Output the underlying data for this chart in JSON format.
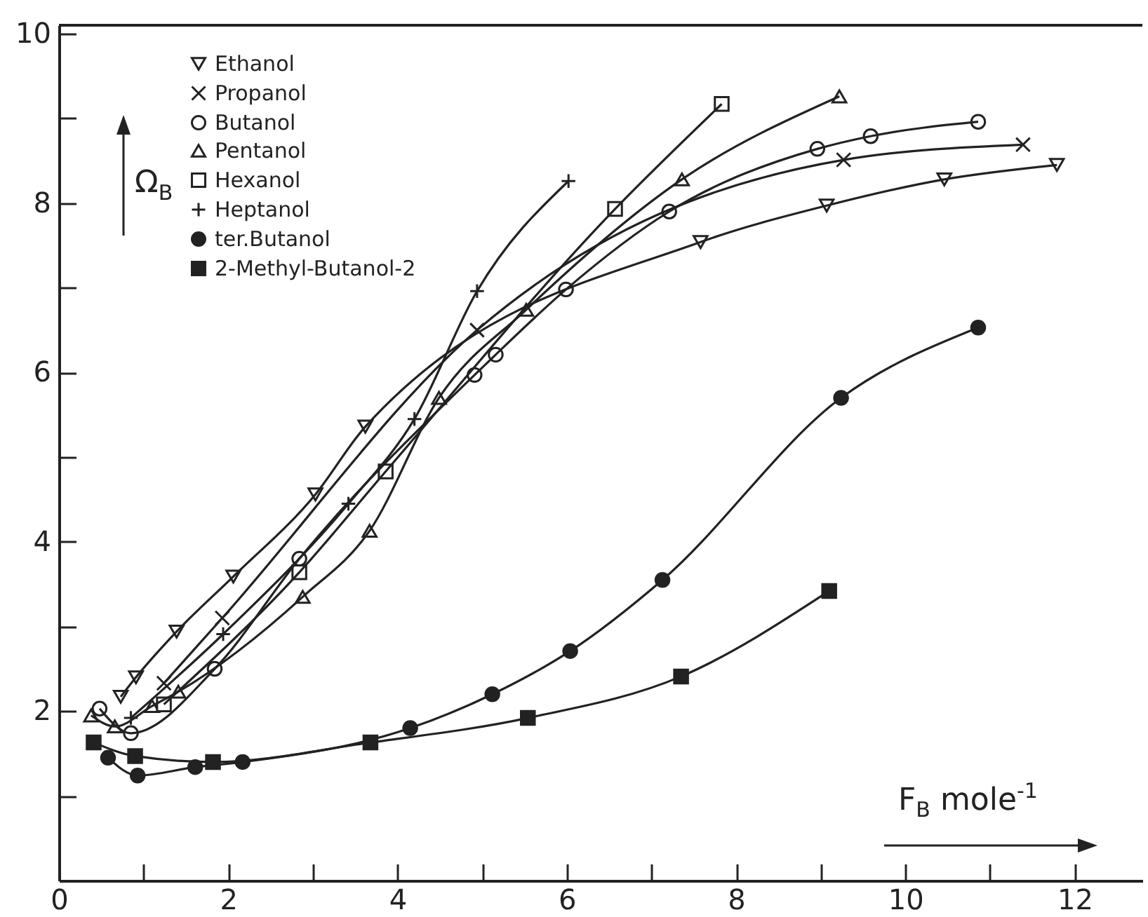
{
  "chart_data": {
    "type": "line",
    "xlabel": "F$_{B}$ mole$^{-1}$",
    "ylabel": "Ω$_{B}$",
    "xlim": [
      0,
      12.8
    ],
    "ylim": [
      0,
      10.1
    ],
    "xticks": [
      0,
      {
        "value": 1,
        "label": null
      },
      2,
      {
        "value": 3,
        "label": null
      },
      4,
      {
        "value": 5,
        "label": null
      },
      6,
      {
        "value": 7,
        "label": null
      },
      8,
      {
        "value": 9,
        "label": null
      },
      10,
      {
        "value": 11,
        "label": null
      },
      12
    ],
    "yticks": [
      {
        "value": 1,
        "label": null
      },
      2,
      {
        "value": 3,
        "label": null
      },
      4,
      {
        "value": 5,
        "label": null
      },
      6,
      {
        "value": 7,
        "label": null
      },
      8,
      {
        "value": 9,
        "label": null
      },
      10
    ],
    "grid": false,
    "legend": "top left",
    "line_style": "solid",
    "series": [
      {
        "name": "Ethanol",
        "color": "#222222",
        "marker": "triangle-down",
        "x": [
          0.73,
          0.91,
          1.39,
          2.06,
          3.03,
          3.62,
          7.58,
          9.07,
          10.46,
          11.79
        ],
        "values": [
          2.17,
          2.4,
          2.94,
          3.59,
          4.56,
          5.36,
          7.54,
          7.97,
          8.28,
          8.45
        ]
      },
      {
        "name": "Propanol",
        "color": "#222222",
        "marker": "x",
        "x": [
          1.24,
          1.93,
          4.94,
          9.27,
          11.39
        ],
        "values": [
          2.33,
          3.1,
          6.5,
          8.51,
          8.69
        ]
      },
      {
        "name": "Butanol",
        "color": "#222222",
        "marker": "circle",
        "x": [
          0.48,
          0.85,
          1.84,
          2.84,
          4.91,
          5.16,
          5.99,
          7.21,
          8.96,
          9.59,
          10.86
        ],
        "values": [
          2.03,
          1.74,
          2.5,
          3.8,
          5.97,
          6.21,
          6.98,
          7.9,
          8.64,
          8.79,
          8.96
        ]
      },
      {
        "name": "Pentanol",
        "color": "#222222",
        "marker": "triangle",
        "x": [
          0.38,
          0.66,
          1.1,
          1.41,
          2.88,
          3.67,
          4.49,
          5.52,
          7.36,
          9.22
        ],
        "values": [
          1.95,
          1.82,
          2.06,
          2.23,
          3.35,
          4.13,
          5.7,
          6.74,
          8.28,
          9.26
        ]
      },
      {
        "name": "Hexanol",
        "color": "#222222",
        "marker": "square",
        "x": [
          1.24,
          2.84,
          3.86,
          6.57,
          7.83
        ],
        "values": [
          2.08,
          3.64,
          4.83,
          7.93,
          9.17
        ]
      },
      {
        "name": "Heptanol",
        "color": "#222222",
        "marker": "cross",
        "x": [
          0.85,
          1.94,
          3.42,
          4.2,
          4.94,
          6.02
        ],
        "values": [
          1.92,
          2.91,
          4.45,
          5.45,
          6.96,
          8.26
        ]
      },
      {
        "name": "ter.Butanol",
        "color": "#222222",
        "marker": "circle",
        "x": [
          0.58,
          0.93,
          1.61,
          2.17,
          4.15,
          5.12,
          6.04,
          7.13,
          9.24,
          10.86
        ],
        "values": [
          1.45,
          1.24,
          1.34,
          1.4,
          1.8,
          2.2,
          2.71,
          3.55,
          5.7,
          6.53
        ]
      },
      {
        "name": "2-Methyl-Butanol-2",
        "color": "#222222",
        "marker": "square",
        "x": [
          0.41,
          0.9,
          1.82,
          3.68,
          5.54,
          7.35,
          9.1
        ],
        "values": [
          1.63,
          1.47,
          1.4,
          1.63,
          1.92,
          2.41,
          3.42
        ]
      }
    ]
  }
}
